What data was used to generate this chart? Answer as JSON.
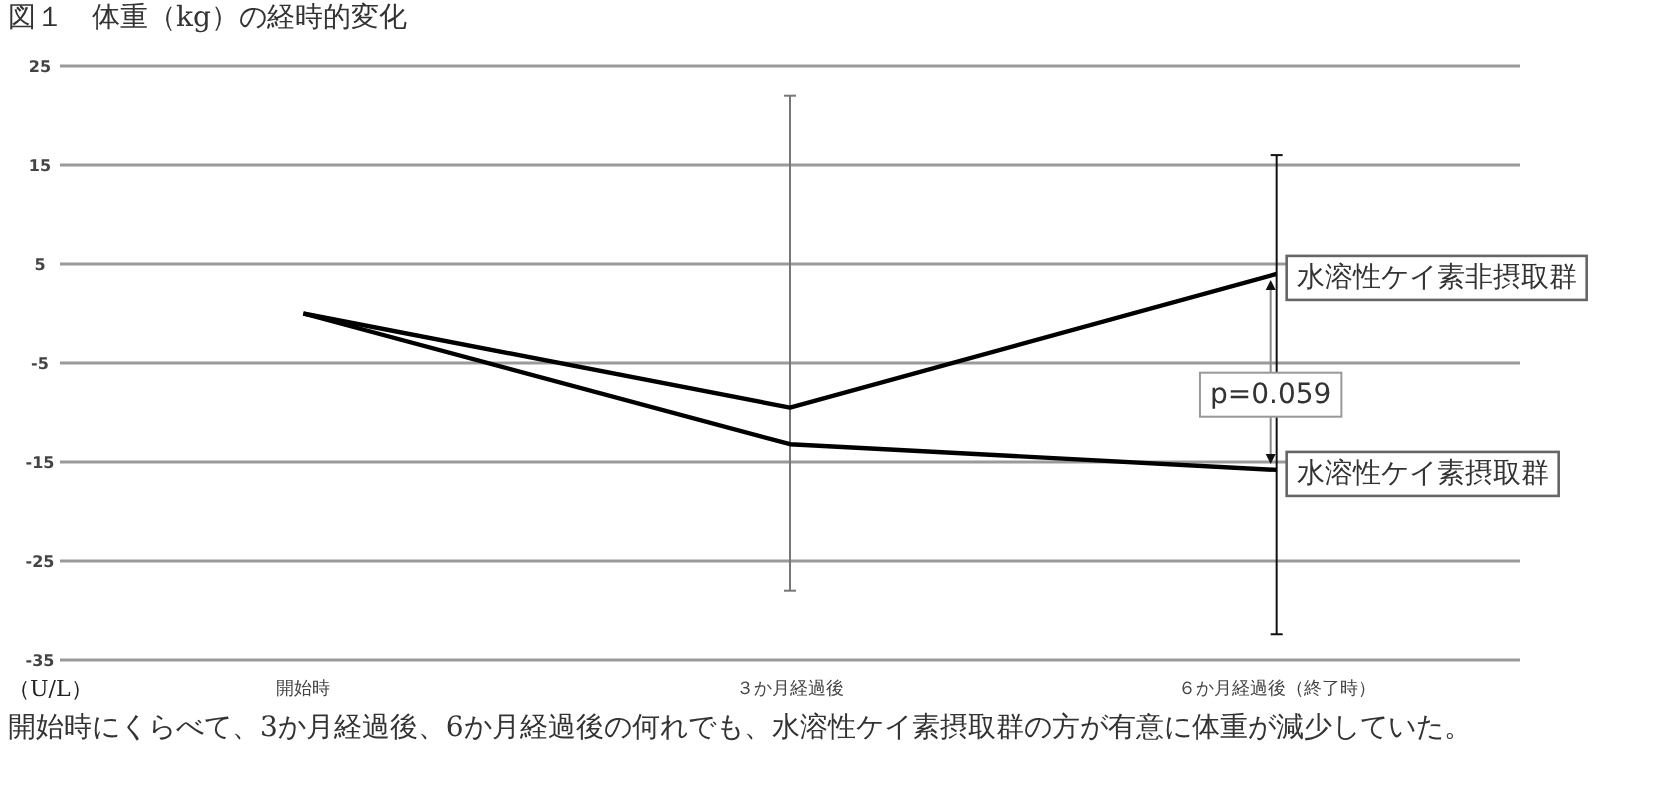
{
  "chart_data": {
    "type": "line",
    "title": "図１　体重（kg）の経時的変化",
    "ylabel": "（U/L）",
    "categories": [
      "開始時",
      "３か月経過後",
      "６か月経過後（終了時）"
    ],
    "series": [
      {
        "name": "水溶性ケイ素非摂取群",
        "color": "#000000",
        "values": [
          0,
          -9.5,
          4
        ],
        "errors": [
          null,
          [
            -28,
            22
          ],
          null
        ]
      },
      {
        "name": "水溶性ケイ素摂取群",
        "color": "#000000",
        "values": [
          0,
          -13.2,
          -15.8
        ],
        "errors": [
          null,
          null,
          [
            -32.4,
            16
          ]
        ]
      }
    ],
    "ylim": [
      -35,
      25
    ],
    "yticks": [
      -35,
      -25,
      -15,
      -5,
      5,
      15,
      25
    ],
    "grid": "y",
    "marker": "none",
    "line_style": "solid",
    "annotations": [
      {
        "text": "p=0.059",
        "x": "６か月経過後（終了時）",
        "y": -8
      },
      "開始時にくらべて、3か月経過後、6か月経過後の何れでも、水溶性ケイ素摂取群の方が有意に体重が減少していた。"
    ]
  }
}
